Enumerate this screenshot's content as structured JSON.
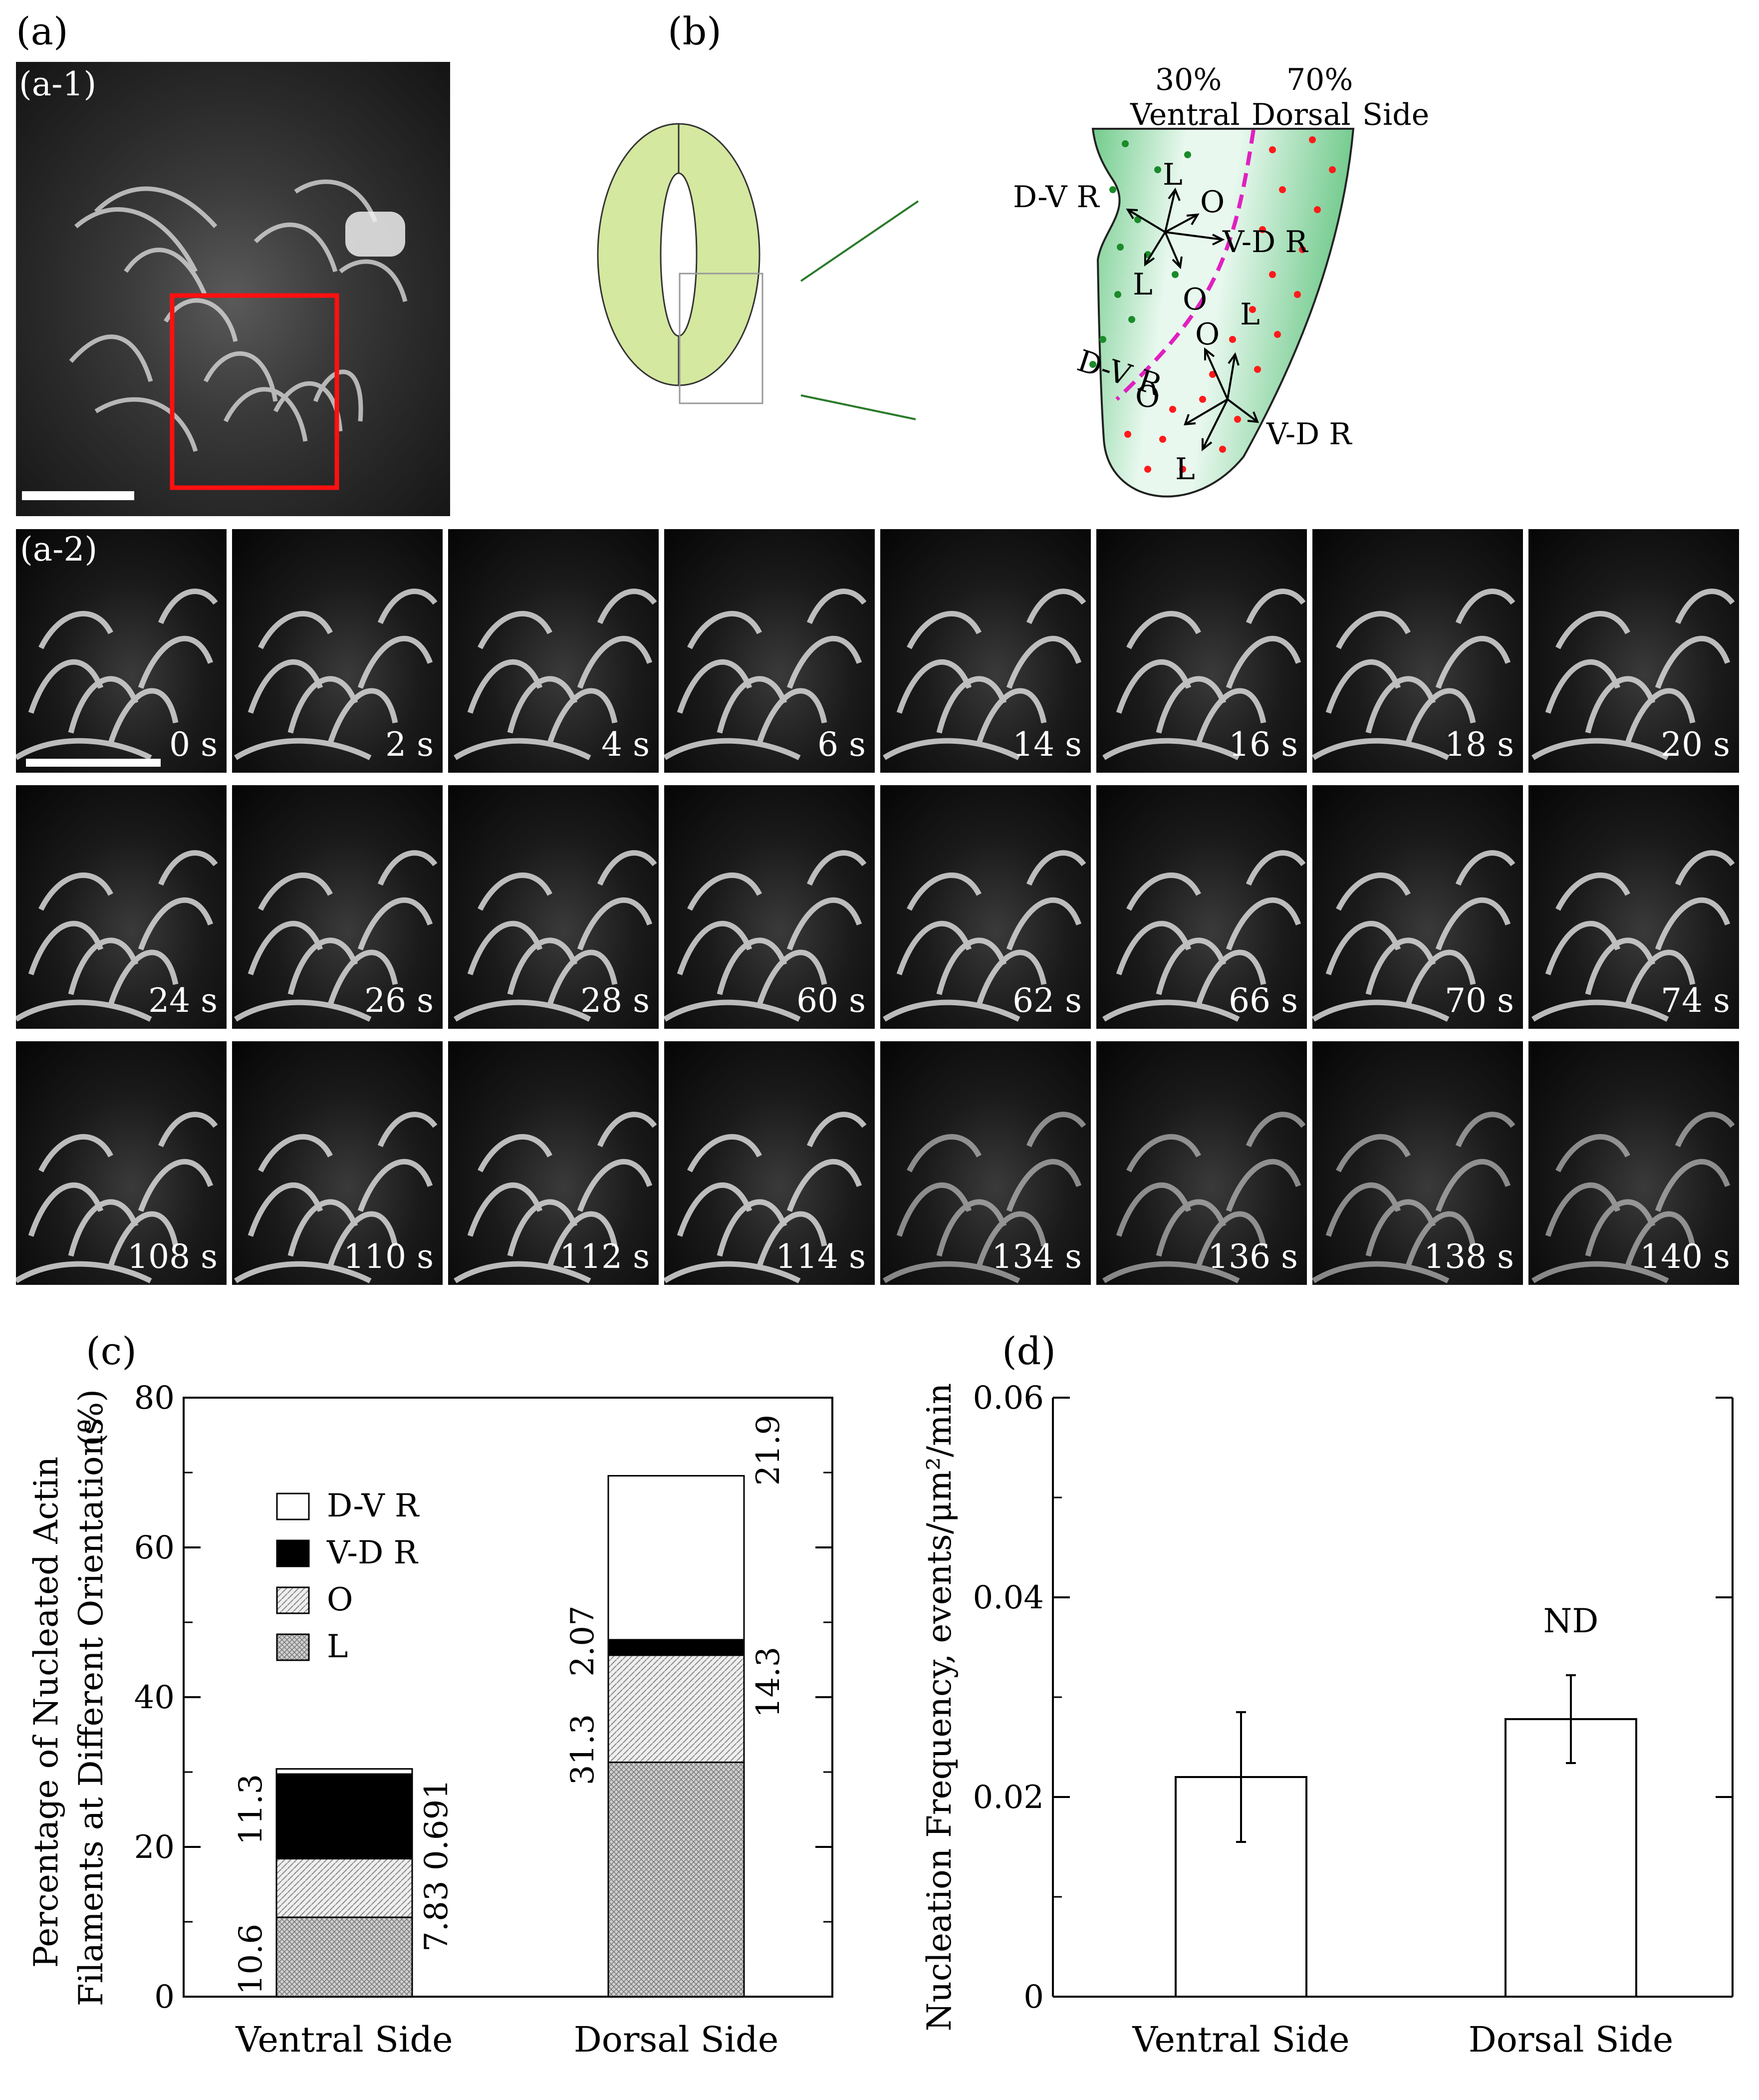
{
  "labels": {
    "a": "(a)",
    "b": "(b)",
    "c": "(c)",
    "d": "(d)",
    "a1": "(a-1)",
    "a2": "(a-2)"
  },
  "frames": [
    "0 s",
    "2 s",
    "4 s",
    "6 s",
    "14 s",
    "16 s",
    "18 s",
    "20 s",
    "24 s",
    "26 s",
    "28 s",
    "60 s",
    "62 s",
    "66 s",
    "70 s",
    "74 s",
    "108 s",
    "110 s",
    "112 s",
    "114 s",
    "134 s",
    "136 s",
    "138 s",
    "140 s"
  ],
  "schematic": {
    "pct_ventral": "30%",
    "pct_dorsal": "70%",
    "ventral": "Ventral",
    "dorsal": "Dorsal",
    "side": "Side",
    "arrows": {
      "dvr": "D-V R",
      "vdr": "V-D R",
      "o": "O",
      "l": "L"
    },
    "colors": {
      "ventral_dot": "#1a8a2a",
      "dorsal_dot": "#ff1a1a",
      "boundary": "#e020c0",
      "fill": "#bfeccc",
      "cell": "#d4e8a0"
    }
  },
  "chart_data": [
    {
      "type": "bar",
      "stacked": true,
      "categories": [
        "Ventral Side",
        "Dorsal Side"
      ],
      "series": [
        {
          "name": "L",
          "values": [
            10.6,
            31.3
          ]
        },
        {
          "name": "O",
          "values": [
            7.83,
            14.3
          ]
        },
        {
          "name": "V-D R",
          "values": [
            11.3,
            2.07
          ]
        },
        {
          "name": "D-V R",
          "values": [
            0.691,
            21.9
          ]
        }
      ],
      "value_labels": {
        "ventral": {
          "L": "10.6",
          "O": "7.83",
          "V-D R": "11.3",
          "D-V R": "0.691"
        },
        "dorsal": {
          "L": "31.3",
          "O": "14.3",
          "V-D R": "2.07",
          "D-V R": "21.9"
        }
      },
      "legend": [
        "D-V R",
        "V-D R",
        "O",
        "L"
      ],
      "ylabel_line1": "Percentage of Nucleated Actin",
      "ylabel_line2": "Filaments at Different Orientations",
      "yunit": "(%)",
      "ylim": [
        0,
        80
      ],
      "yticks": [
        "0",
        "20",
        "40",
        "60",
        "80"
      ]
    },
    {
      "type": "bar",
      "categories": [
        "Ventral Side",
        "Dorsal Side"
      ],
      "values": [
        0.022,
        0.0278
      ],
      "error": [
        0.0065,
        0.0044
      ],
      "annotation": "ND",
      "ylabel": "Nucleation Frequency, events/μm²/min",
      "ylim": [
        0,
        0.06
      ],
      "yticks": [
        "0",
        "0.02",
        "0.04",
        "0.06"
      ]
    }
  ]
}
